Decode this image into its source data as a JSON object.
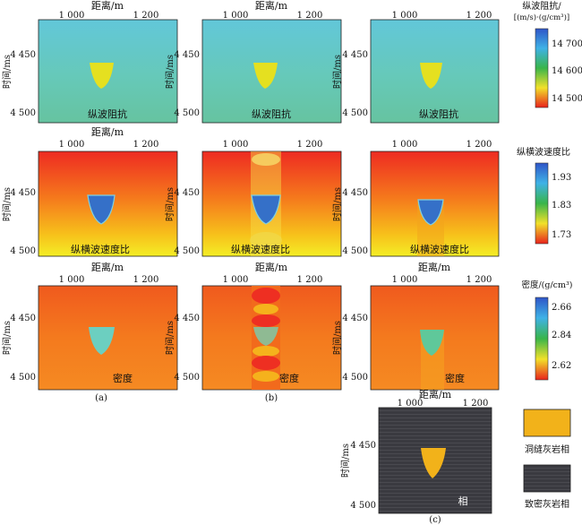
{
  "axis": {
    "x_title": "距离/m",
    "x_ticks": [
      "1 000",
      "1 200"
    ],
    "y_title": "时间/ms",
    "y_ticks": [
      "4 450",
      "4 500"
    ]
  },
  "rows": [
    {
      "panel_label": "纵波阻抗",
      "colorbar": {
        "title_lines": [
          "纵波阻抗/",
          "[(m/s)·(g/cm³)]"
        ],
        "ticks": [
          "14 700",
          "14 600",
          "14 500"
        ]
      }
    },
    {
      "panel_label": "纵横波速度比",
      "colorbar": {
        "title_lines": [
          "纵横波速度比"
        ],
        "ticks": [
          "1.93",
          "1.83",
          "1.73"
        ]
      }
    },
    {
      "panel_label": "密度",
      "colorbar": {
        "title_lines": [
          "密度/(g/cm³)"
        ],
        "ticks": [
          "2.66",
          "2.84",
          "2.62"
        ]
      }
    },
    {
      "panel_label": "相"
    }
  ],
  "column_labels": [
    "(a)",
    "(b)",
    "(c)"
  ],
  "facies_legend": [
    {
      "label": "洞缝灰岩相",
      "color": "#f2b21a"
    },
    {
      "label": "致密灰岩相",
      "color": "#3b3b40"
    }
  ]
}
